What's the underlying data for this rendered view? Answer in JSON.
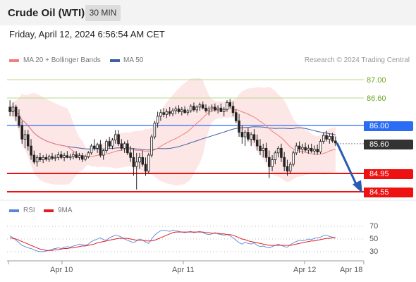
{
  "header": {
    "title": "Crude Oil (WTI)",
    "timeframe": "30 MIN"
  },
  "datetime": "Friday, April 12, 2024 6:56:54 AM CET",
  "legend": {
    "ma20_label": "MA 20 + Bollinger Bands",
    "ma50_label": "MA 50",
    "credit": "Research © 2024 Trading Central"
  },
  "rsi_legend": {
    "rsi_label": "RSI",
    "ma_label": "9MA"
  },
  "colors": {
    "ma20": "#f08080",
    "ma50": "#4060a0",
    "band_fill": "#fde3e3",
    "support": "#ee1111",
    "pivot": "#2a6df4",
    "target_green": "#b8d88a",
    "arrow": "#2a5bb0",
    "current": "#333333"
  },
  "price_levels": {
    "r2": "87.00",
    "r1": "86.60",
    "pivot": "86.00",
    "last": "85.60",
    "s1": "84.95",
    "s2": "84.55"
  },
  "rsi_ticks": {
    "t70": "70",
    "t50": "50",
    "t30": "30"
  },
  "x_labels": {
    "d1": "Apr 10",
    "d2": "Apr 11",
    "d3": "Apr 12",
    "d4": "Apr 18"
  },
  "chart_data": [
    {
      "type": "candlestick",
      "title": "Crude Oil (WTI)",
      "timeframe": "30 MIN",
      "x_ticks": [
        "Apr 10",
        "Apr 11",
        "Apr 12",
        "Apr 18"
      ],
      "horizontal_levels": [
        {
          "label": "87.00",
          "value": 87.0,
          "kind": "resistance"
        },
        {
          "label": "86.60",
          "value": 86.6,
          "kind": "resistance"
        },
        {
          "label": "86.00",
          "value": 86.0,
          "kind": "pivot"
        },
        {
          "label": "85.60",
          "value": 85.6,
          "kind": "last"
        },
        {
          "label": "84.95",
          "value": 84.95,
          "kind": "support"
        },
        {
          "label": "84.55",
          "value": 84.55,
          "kind": "support"
        }
      ],
      "ylim": [
        84.5,
        87.15
      ],
      "ohlc": [
        [
          86.4,
          86.55,
          86.2,
          86.3
        ],
        [
          86.3,
          86.5,
          86.2,
          86.4
        ],
        [
          86.4,
          86.45,
          86.1,
          86.2
        ],
        [
          86.2,
          86.35,
          85.95,
          86.0
        ],
        [
          86.0,
          86.1,
          85.6,
          85.7
        ],
        [
          85.7,
          85.9,
          85.5,
          85.8
        ],
        [
          85.8,
          85.9,
          85.45,
          85.55
        ],
        [
          85.55,
          85.7,
          85.25,
          85.35
        ],
        [
          85.35,
          85.45,
          85.15,
          85.2
        ],
        [
          85.2,
          85.35,
          85.1,
          85.3
        ],
        [
          85.3,
          85.4,
          85.2,
          85.25
        ],
        [
          85.25,
          85.35,
          85.18,
          85.3
        ],
        [
          85.3,
          85.38,
          85.22,
          85.26
        ],
        [
          85.26,
          85.36,
          85.2,
          85.32
        ],
        [
          85.32,
          85.4,
          85.24,
          85.28
        ],
        [
          85.28,
          85.36,
          85.22,
          85.3
        ],
        [
          85.3,
          85.42,
          85.24,
          85.36
        ],
        [
          85.36,
          85.44,
          85.26,
          85.3
        ],
        [
          85.3,
          85.4,
          85.22,
          85.34
        ],
        [
          85.34,
          85.44,
          85.28,
          85.3
        ],
        [
          85.3,
          85.38,
          85.24,
          85.32
        ],
        [
          85.32,
          85.42,
          85.26,
          85.36
        ],
        [
          85.36,
          85.44,
          85.28,
          85.3
        ],
        [
          85.3,
          85.4,
          85.24,
          85.34
        ],
        [
          85.34,
          85.4,
          85.2,
          85.26
        ],
        [
          85.26,
          85.36,
          85.22,
          85.32
        ],
        [
          85.32,
          85.44,
          85.28,
          85.4
        ],
        [
          85.4,
          85.6,
          85.36,
          85.55
        ],
        [
          85.55,
          85.7,
          85.45,
          85.5
        ],
        [
          85.5,
          85.62,
          85.4,
          85.58
        ],
        [
          85.58,
          85.68,
          85.3,
          85.35
        ],
        [
          85.35,
          85.48,
          85.25,
          85.45
        ],
        [
          85.45,
          85.7,
          85.4,
          85.65
        ],
        [
          85.65,
          85.75,
          85.5,
          85.55
        ],
        [
          85.55,
          85.72,
          85.48,
          85.68
        ],
        [
          85.68,
          85.9,
          85.6,
          85.8
        ],
        [
          85.8,
          85.9,
          85.55,
          85.6
        ],
        [
          85.6,
          85.7,
          85.45,
          85.5
        ],
        [
          85.5,
          85.65,
          85.4,
          85.6
        ],
        [
          85.6,
          85.68,
          85.35,
          85.4
        ],
        [
          85.4,
          85.55,
          85.2,
          85.3
        ],
        [
          85.3,
          85.5,
          84.9,
          85.1
        ],
        [
          85.1,
          85.4,
          84.6,
          85.2
        ],
        [
          85.2,
          85.4,
          85.05,
          85.3
        ],
        [
          85.3,
          85.45,
          85.1,
          85.15
        ],
        [
          85.15,
          85.3,
          84.9,
          85.0
        ],
        [
          85.0,
          85.4,
          84.95,
          85.35
        ],
        [
          85.35,
          85.8,
          85.3,
          85.75
        ],
        [
          85.75,
          86.1,
          85.7,
          86.05
        ],
        [
          86.05,
          86.3,
          85.95,
          86.2
        ],
        [
          86.2,
          86.35,
          86.1,
          86.28
        ],
        [
          86.28,
          86.38,
          86.18,
          86.24
        ],
        [
          86.24,
          86.36,
          86.16,
          86.3
        ],
        [
          86.3,
          86.4,
          86.2,
          86.26
        ],
        [
          86.26,
          86.38,
          86.2,
          86.32
        ],
        [
          86.32,
          86.42,
          86.24,
          86.36
        ],
        [
          86.36,
          86.44,
          86.26,
          86.3
        ],
        [
          86.3,
          86.4,
          86.22,
          86.34
        ],
        [
          86.34,
          86.42,
          86.26,
          86.28
        ],
        [
          86.28,
          86.36,
          86.22,
          86.32
        ],
        [
          86.32,
          86.46,
          86.28,
          86.42
        ],
        [
          86.42,
          86.5,
          86.3,
          86.34
        ],
        [
          86.34,
          86.44,
          86.28,
          86.4
        ],
        [
          86.4,
          86.5,
          86.32,
          86.45
        ],
        [
          86.45,
          86.52,
          86.35,
          86.38
        ],
        [
          86.38,
          86.46,
          86.28,
          86.32
        ],
        [
          86.32,
          86.42,
          86.22,
          86.36
        ],
        [
          86.36,
          86.46,
          86.3,
          86.4
        ],
        [
          86.4,
          86.48,
          86.3,
          86.34
        ],
        [
          86.34,
          86.44,
          86.26,
          86.38
        ],
        [
          86.38,
          86.48,
          86.32,
          86.3
        ],
        [
          86.3,
          86.4,
          86.2,
          86.35
        ],
        [
          86.35,
          86.55,
          86.3,
          86.5
        ],
        [
          86.5,
          86.58,
          86.38,
          86.42
        ],
        [
          86.42,
          86.52,
          86.2,
          86.28
        ],
        [
          86.28,
          86.35,
          86.05,
          86.1
        ],
        [
          86.1,
          86.25,
          85.75,
          85.85
        ],
        [
          85.85,
          86.0,
          85.6,
          85.75
        ],
        [
          85.75,
          85.9,
          85.55,
          85.85
        ],
        [
          85.85,
          85.95,
          85.65,
          85.7
        ],
        [
          85.7,
          85.85,
          85.55,
          85.8
        ],
        [
          85.8,
          85.92,
          85.62,
          85.68
        ],
        [
          85.68,
          85.8,
          85.45,
          85.55
        ],
        [
          85.55,
          85.7,
          85.35,
          85.45
        ],
        [
          85.45,
          85.6,
          85.3,
          85.5
        ],
        [
          85.5,
          85.62,
          85.2,
          85.3
        ],
        [
          85.3,
          85.45,
          84.85,
          85.1
        ],
        [
          85.1,
          85.35,
          85.0,
          85.25
        ],
        [
          85.25,
          85.45,
          85.15,
          85.4
        ],
        [
          85.4,
          85.55,
          85.3,
          85.5
        ],
        [
          85.5,
          85.6,
          85.2,
          85.3
        ],
        [
          85.3,
          85.42,
          85.0,
          85.1
        ],
        [
          85.1,
          85.25,
          84.9,
          85.0
        ],
        [
          85.0,
          85.2,
          84.95,
          85.15
        ],
        [
          85.15,
          85.45,
          85.1,
          85.4
        ],
        [
          85.4,
          85.62,
          85.35,
          85.55
        ],
        [
          85.55,
          85.65,
          85.4,
          85.48
        ],
        [
          85.48,
          85.6,
          85.38,
          85.52
        ],
        [
          85.52,
          85.62,
          85.42,
          85.46
        ],
        [
          85.46,
          85.58,
          85.38,
          85.5
        ],
        [
          85.5,
          85.6,
          85.4,
          85.44
        ],
        [
          85.44,
          85.56,
          85.36,
          85.48
        ],
        [
          85.48,
          85.58,
          85.36,
          85.42
        ],
        [
          85.42,
          85.7,
          85.38,
          85.65
        ],
        [
          85.65,
          85.85,
          85.6,
          85.78
        ],
        [
          85.78,
          85.88,
          85.65,
          85.7
        ],
        [
          85.7,
          85.82,
          85.6,
          85.76
        ],
        [
          85.76,
          85.84,
          85.62,
          85.66
        ],
        [
          85.66,
          85.76,
          85.55,
          85.62
        ]
      ]
    },
    {
      "type": "line",
      "series": [
        {
          "name": "RSI",
          "values": [
            55,
            52,
            48,
            44,
            40,
            38,
            36,
            35,
            33,
            31,
            30,
            30,
            31,
            32,
            34,
            35,
            36,
            35,
            37,
            38,
            37,
            39,
            40,
            42,
            41,
            40,
            42,
            46,
            48,
            50,
            52,
            49,
            48,
            52,
            54,
            56,
            55,
            53,
            50,
            48,
            46,
            44,
            47,
            50,
            48,
            45,
            43,
            50,
            56,
            60,
            63,
            64,
            63,
            62,
            64,
            63,
            62,
            61,
            60,
            61,
            62,
            60,
            61,
            62,
            60,
            58,
            57,
            58,
            60,
            58,
            57,
            56,
            57,
            55,
            52,
            48,
            44,
            42,
            45,
            43,
            42,
            44,
            40,
            38,
            39,
            37,
            36,
            38,
            40,
            42,
            40,
            38,
            37,
            41,
            44,
            46,
            48,
            47,
            48,
            50,
            49,
            51,
            52,
            53,
            55,
            56,
            54,
            53,
            52
          ]
        },
        {
          "name": "9MA",
          "values": [
            52,
            51,
            50,
            48,
            46,
            44,
            42,
            40,
            38,
            36,
            34,
            33,
            32,
            32,
            32,
            33,
            33,
            34,
            35,
            35,
            36,
            36,
            37,
            38,
            39,
            39,
            40,
            41,
            42,
            44,
            45,
            46,
            47,
            48,
            49,
            50,
            51,
            51,
            51,
            51,
            50,
            49,
            48,
            48,
            48,
            47,
            47,
            47,
            48,
            50,
            52,
            54,
            56,
            58,
            60,
            61,
            61,
            61,
            61,
            61,
            61,
            61,
            61,
            61,
            61,
            60,
            60,
            59,
            59,
            59,
            58,
            58,
            57,
            57,
            56,
            54,
            52,
            50,
            49,
            47,
            46,
            45,
            44,
            43,
            42,
            41,
            40,
            40,
            40,
            40,
            40,
            40,
            40,
            40,
            41,
            42,
            43,
            44,
            45,
            46,
            47,
            47,
            48,
            49,
            50,
            51,
            51,
            52,
            52
          ]
        }
      ],
      "ylim": [
        20,
        80
      ],
      "ticks": [
        70,
        50,
        30
      ]
    }
  ]
}
